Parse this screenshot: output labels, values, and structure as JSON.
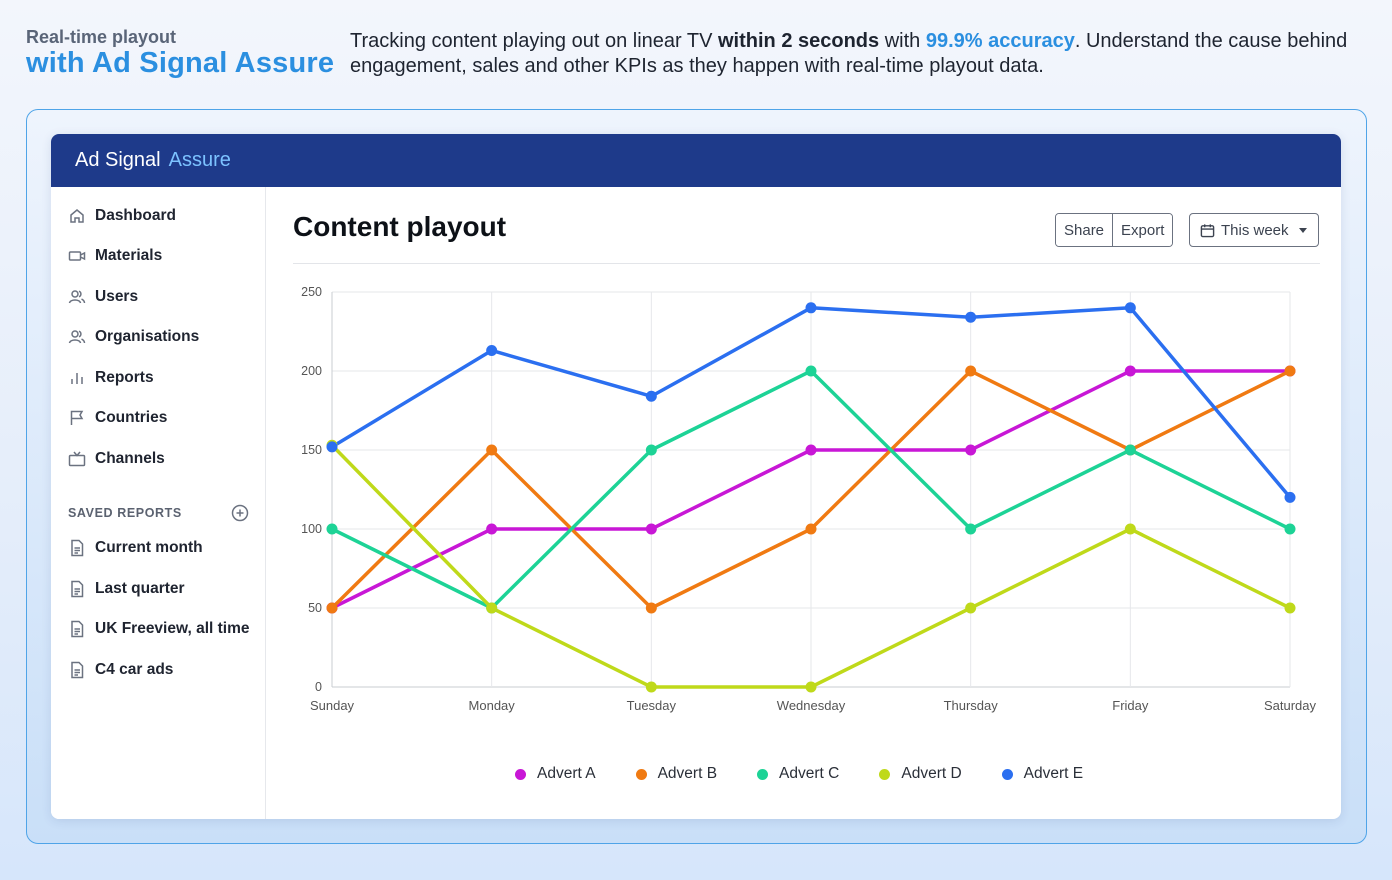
{
  "hero": {
    "tag": "Real-time playout",
    "title": "with Ad Signal Assure",
    "desc_part1": "Tracking content playing out on linear TV ",
    "desc_bold": "within 2 seconds",
    "desc_part2": " with ",
    "desc_accent": "99.9% accuracy",
    "desc_part3": ". Understand the cause behind engagement, sales and other KPIs as they happen with real-time playout data."
  },
  "app": {
    "brand_main": "Ad Signal",
    "brand_accent": "Assure"
  },
  "sidebar": {
    "items": [
      {
        "label": "Dashboard",
        "icon": "home-icon"
      },
      {
        "label": "Materials",
        "icon": "video-icon"
      },
      {
        "label": "Users",
        "icon": "users-icon"
      },
      {
        "label": "Organisations",
        "icon": "users-icon"
      },
      {
        "label": "Reports",
        "icon": "bar-chart-icon"
      },
      {
        "label": "Countries",
        "icon": "flag-icon"
      },
      {
        "label": "Channels",
        "icon": "tv-icon"
      }
    ],
    "saved_heading": "SAVED REPORTS",
    "saved_reports": [
      {
        "label": "Current month",
        "icon": "file-icon"
      },
      {
        "label": "Last quarter",
        "icon": "file-icon"
      },
      {
        "label": "UK Freeview, all time",
        "icon": "file-icon"
      },
      {
        "label": "C4 car ads",
        "icon": "file-icon"
      }
    ]
  },
  "main": {
    "title": "Content playout",
    "share_label": "Share",
    "export_label": "Export",
    "range_label": "This week"
  },
  "colors": {
    "nav_bar": "#1e3a8a",
    "accent": "#2b8fe0",
    "advert_a": "#c817d6",
    "advert_b": "#f07a12",
    "advert_c": "#1dd396",
    "advert_d": "#bfd91a",
    "advert_e": "#2b6ff0"
  },
  "chart_data": {
    "type": "line",
    "categories": [
      "Sunday",
      "Monday",
      "Tuesday",
      "Wednesday",
      "Thursday",
      "Friday",
      "Saturday"
    ],
    "ylim": [
      0,
      250
    ],
    "yticks": [
      0,
      50,
      100,
      150,
      200,
      250
    ],
    "grid": true,
    "legend_position": "bottom",
    "series": [
      {
        "name": "Advert A",
        "color": "#c817d6",
        "values": [
          50,
          100,
          100,
          150,
          150,
          200,
          200
        ]
      },
      {
        "name": "Advert B",
        "color": "#f07a12",
        "values": [
          50,
          150,
          50,
          100,
          200,
          150,
          200
        ]
      },
      {
        "name": "Advert C",
        "color": "#1dd396",
        "values": [
          100,
          50,
          150,
          200,
          100,
          150,
          100
        ]
      },
      {
        "name": "Advert D",
        "color": "#bfd91a",
        "values": [
          153,
          50,
          0,
          0,
          50,
          100,
          50
        ]
      },
      {
        "name": "Advert E",
        "color": "#2b6ff0",
        "values": [
          152,
          213,
          184,
          240,
          234,
          240,
          120
        ]
      }
    ]
  }
}
